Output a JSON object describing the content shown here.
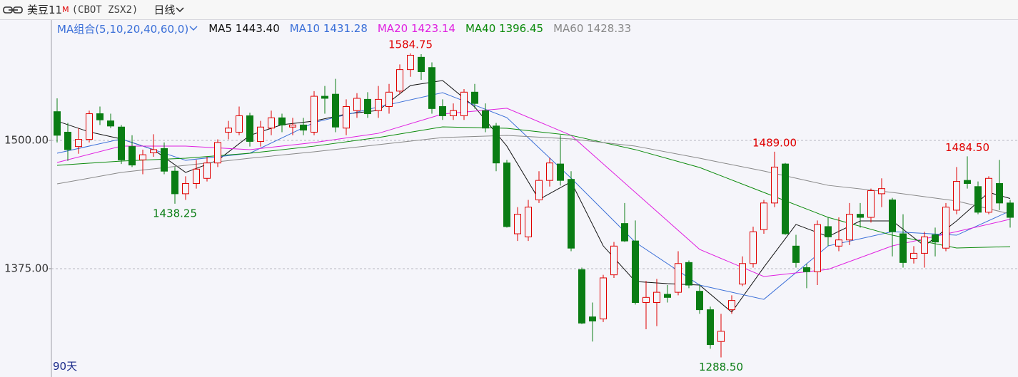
{
  "header": {
    "title": "美豆11",
    "title_sup": "M",
    "code": "(CBOT ZSX2)",
    "period": "日线",
    "ma_group": "MA组合(5,10,20,40,60,0)",
    "span": "90天"
  },
  "chart_data": {
    "type": "candlestick",
    "ylim": [
      1272.22,
      1602.08
    ],
    "yticks": [
      {
        "value": 1500,
        "label": "1500.00"
      },
      {
        "value": 1375,
        "label": "1375.00"
      }
    ],
    "grid": true,
    "up_color": "#e00000",
    "down_color": "#0a7d14",
    "open": [
      1528,
      1508,
      1494,
      1501,
      1526,
      1519,
      1513,
      1494,
      1481,
      1488,
      1492,
      1470,
      1448,
      1458,
      1463,
      1478,
      1508,
      1508,
      1524,
      1499,
      1512,
      1522,
      1513,
      1515,
      1508,
      1543,
      1545,
      1512,
      1529,
      1540,
      1529,
      1533,
      1548,
      1569,
      1581,
      1571,
      1533,
      1524,
      1524,
      1547,
      1529,
      1514,
      1478,
      1409,
      1406,
      1442,
      1461,
      1477,
      1462,
      1374,
      1328,
      1326,
      1369,
      1419,
      1402,
      1342,
      1342,
      1350,
      1352,
      1381,
      1353,
      1335,
      1304,
      1335,
      1360,
      1380,
      1413,
      1439,
      1477,
      1397,
      1376,
      1372,
      1416,
      1397,
      1403,
      1428,
      1425,
      1448,
      1442,
      1409,
      1385,
      1390,
      1408,
      1395,
      1432,
      1461,
      1455,
      1430,
      1458,
      1439
    ],
    "high": [
      1541,
      1517,
      1512,
      1529,
      1533,
      1526,
      1515,
      1505,
      1491,
      1506,
      1498,
      1474,
      1465,
      1481,
      1484,
      1501,
      1519,
      1533,
      1527,
      1519,
      1529,
      1526,
      1522,
      1522,
      1548,
      1553,
      1560,
      1540,
      1546,
      1547,
      1553,
      1555,
      1574,
      1584.75,
      1584,
      1576,
      1540,
      1536,
      1550,
      1555,
      1536,
      1517,
      1481,
      1435,
      1442,
      1470,
      1483,
      1505,
      1470,
      1376,
      1342,
      1369,
      1401,
      1439,
      1422,
      1363,
      1365,
      1359,
      1392,
      1383,
      1360,
      1338,
      1331,
      1349,
      1387,
      1416,
      1442,
      1489,
      1478,
      1408,
      1380,
      1422,
      1425,
      1425,
      1439,
      1439,
      1453,
      1463,
      1444,
      1428,
      1397,
      1411,
      1415,
      1439,
      1474,
      1484.5,
      1460,
      1465,
      1481,
      1442
    ],
    "low": [
      1498,
      1480,
      1487,
      1498,
      1515,
      1512,
      1477,
      1474,
      1467,
      1484,
      1467,
      1438.25,
      1442,
      1453,
      1460,
      1474,
      1501,
      1505,
      1494,
      1494,
      1505,
      1508,
      1505,
      1505,
      1505,
      1526,
      1508,
      1505,
      1522,
      1522,
      1522,
      1526,
      1545,
      1562,
      1559,
      1526,
      1520,
      1520,
      1520,
      1531,
      1508,
      1470,
      1415,
      1402,
      1402,
      1439,
      1455,
      1456,
      1392,
      1321,
      1304,
      1323,
      1366,
      1401,
      1340,
      1316,
      1319,
      1342,
      1349,
      1356,
      1331,
      1297,
      1288.5,
      1331,
      1358,
      1376,
      1409,
      1435,
      1408,
      1376,
      1356,
      1359,
      1397,
      1392,
      1398,
      1415,
      1420,
      1435,
      1387,
      1376,
      1380,
      1376,
      1387,
      1392,
      1428,
      1453,
      1428,
      1428,
      1432,
      1415
    ],
    "close": [
      1505,
      1491,
      1501,
      1526,
      1520,
      1514,
      1481,
      1476,
      1486,
      1491,
      1470,
      1448,
      1458,
      1472,
      1478,
      1498,
      1512,
      1524,
      1499,
      1513,
      1522,
      1515,
      1515,
      1510,
      1543,
      1541,
      1513,
      1533,
      1541,
      1526,
      1540,
      1547,
      1569,
      1583,
      1567,
      1531,
      1524,
      1529,
      1547,
      1536,
      1512,
      1478,
      1416,
      1428,
      1435,
      1461,
      1478,
      1461,
      1395,
      1322,
      1324,
      1366,
      1397,
      1402,
      1342,
      1347,
      1352,
      1347,
      1380,
      1359,
      1335,
      1301,
      1314,
      1344,
      1380,
      1411,
      1439,
      1474,
      1409,
      1381,
      1372,
      1418,
      1406,
      1403,
      1428,
      1425,
      1451,
      1453,
      1411,
      1381,
      1390,
      1406,
      1401,
      1435,
      1460,
      1458,
      1430,
      1463,
      1439,
      1425
    ],
    "series": [
      {
        "name": "MA5",
        "color": "#111111",
        "value_label": "1443.40",
        "x": [
          0,
          3,
          6,
          9,
          12,
          15,
          18,
          21,
          24,
          27,
          30,
          33,
          36,
          39,
          42,
          45,
          48,
          51,
          54,
          57,
          60,
          63,
          66,
          69,
          72,
          75,
          78,
          81,
          84,
          87,
          89
        ],
        "values": [
          1518.8,
          1508.3,
          1501.4,
          1491.0,
          1468.8,
          1480.6,
          1504.9,
          1515.3,
          1518.8,
          1525.7,
          1529.2,
          1553.5,
          1558.3,
          1532.6,
          1494.4,
          1442.4,
          1459.7,
          1397.2,
          1362.5,
          1360.4,
          1359.0,
          1332.6,
          1376.4,
          1418.1,
          1406.3,
          1421.5,
          1421.5,
          1397.2,
          1421.5,
          1449.3,
          1443.4
        ]
      },
      {
        "name": "MA10",
        "color": "#3a6fd8",
        "value_label": "1431.28",
        "x": [
          0,
          6,
          12,
          18,
          24,
          30,
          36,
          42,
          48,
          54,
          60,
          66,
          72,
          78,
          84,
          89
        ],
        "values": [
          1487.5,
          1501.4,
          1480.6,
          1487.5,
          1517.4,
          1532.6,
          1546.5,
          1522.2,
          1463.2,
          1400.7,
          1359.0,
          1345.1,
          1397.2,
          1411.1,
          1407.6,
          1431.28
        ]
      },
      {
        "name": "MA20",
        "color": "#e020e0",
        "value_label": "1423.14",
        "x": [
          0,
          6,
          12,
          18,
          24,
          30,
          36,
          42,
          48,
          54,
          60,
          66,
          72,
          78,
          84,
          89
        ],
        "values": [
          1478.5,
          1494.4,
          1494.4,
          1491.0,
          1497.9,
          1506.9,
          1525.7,
          1531.3,
          1504.9,
          1449.3,
          1393.8,
          1367.4,
          1374.3,
          1397.2,
          1411.1,
          1423.14
        ]
      },
      {
        "name": "MA40",
        "color": "#0a8a0a",
        "value_label": "1396.45",
        "x": [
          0,
          6,
          12,
          18,
          24,
          30,
          36,
          42,
          48,
          54,
          60,
          66,
          72,
          78,
          84,
          89
        ],
        "values": [
          1475.7,
          1479.9,
          1482.6,
          1487.5,
          1494.4,
          1502.8,
          1513.2,
          1511.8,
          1504.9,
          1491.0,
          1473.6,
          1449.3,
          1425.0,
          1407.6,
          1395.1,
          1396.45
        ]
      },
      {
        "name": "MA60",
        "color": "#888888",
        "value_label": "1428.33",
        "x": [
          0,
          6,
          12,
          18,
          24,
          30,
          36,
          42,
          48,
          54,
          60,
          66,
          72,
          78,
          84,
          89
        ],
        "values": [
          1457.6,
          1468.8,
          1475.7,
          1482.6,
          1488.9,
          1495.8,
          1502.8,
          1504.9,
          1501.4,
          1494.4,
          1482.6,
          1470.1,
          1456.2,
          1449.3,
          1441.0,
          1428.33
        ]
      }
    ],
    "annotations": [
      {
        "label": "1584.75",
        "value": 1584.75,
        "color": "#e00000"
      },
      {
        "label": "1438.25",
        "value": 1438.25,
        "color": "#0a7d14"
      },
      {
        "label": "1288.50",
        "value": 1288.5,
        "color": "#0a7d14"
      },
      {
        "label": "1489.00",
        "value": 1489,
        "color": "#e00000"
      },
      {
        "label": "1484.50",
        "value": 1484.5,
        "color": "#e00000"
      }
    ]
  }
}
